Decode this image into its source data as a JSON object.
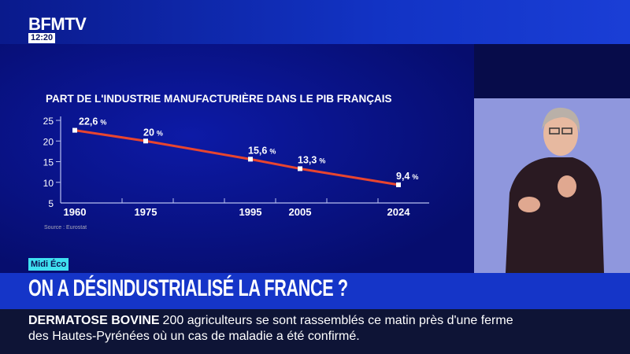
{
  "channel": {
    "logo": "BFMTV",
    "time": "12:20"
  },
  "program_tag": "Midi Éco",
  "headline": "ON A DÉSINDUSTRIALISÉ LA FRANCE ?",
  "ticker": {
    "topic": "DERMATOSE BOVINE",
    "text": "200 agriculteurs se sont rassemblés ce matin près d'une ferme des Hautes-Pyrénées où un cas de maladie a été confirmé."
  },
  "colors": {
    "line": "#e8452f",
    "panel": "#0d1aa6"
  },
  "chart_data": {
    "type": "line",
    "title": "PART DE L'INDUSTRIE MANUFACTURIÈRE DANS LE PIB FRANÇAIS",
    "source": "Source : Eurostat",
    "x": [
      1960,
      1975,
      1995,
      2005,
      2024
    ],
    "x_tick_labels": [
      "1960",
      "1975",
      "1995",
      "2005",
      "2024"
    ],
    "values": [
      22.6,
      20,
      15.6,
      13.3,
      9.4
    ],
    "data_labels": [
      "22,6",
      "20",
      "15,6",
      "13,3",
      "9,4"
    ],
    "unit": "%",
    "y_ticks": [
      25,
      20,
      15,
      10,
      5
    ],
    "ylim": [
      5,
      25
    ],
    "xlabel": "",
    "ylabel": ""
  }
}
